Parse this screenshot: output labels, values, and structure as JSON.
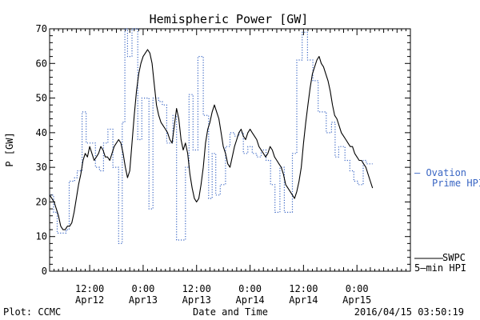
{
  "chart_data": {
    "type": "line",
    "title": "Hemispheric Power [GW]",
    "ylabel": "P [GW]",
    "xlabel": "Date and Time",
    "ylim": [
      0,
      70
    ],
    "y_ticks": [
      0,
      10,
      20,
      30,
      40,
      50,
      60,
      70
    ],
    "x_range_hours": [
      0,
      81
    ],
    "x_tick_labels": [
      {
        "time": "12:00",
        "date": "Apr12",
        "hour": 9
      },
      {
        "time": "0:00",
        "date": "Apr13",
        "hour": 21
      },
      {
        "time": "12:00",
        "date": "Apr13",
        "hour": 33
      },
      {
        "time": "0:00",
        "date": "Apr14",
        "hour": 45
      },
      {
        "time": "12:00",
        "date": "Apr14",
        "hour": 57
      },
      {
        "time": "0:00",
        "date": "Apr15",
        "hour": 69
      }
    ],
    "grid": false,
    "series": [
      {
        "name": "SWPC 5-min HPI",
        "color": "#000000",
        "style": "solid",
        "step": false,
        "points": [
          [
            0,
            22
          ],
          [
            0.5,
            21
          ],
          [
            1,
            20
          ],
          [
            1.5,
            18
          ],
          [
            2,
            16
          ],
          [
            2.5,
            13
          ],
          [
            3,
            12
          ],
          [
            3.5,
            12
          ],
          [
            4,
            13
          ],
          [
            4.5,
            13
          ],
          [
            5,
            14
          ],
          [
            5.5,
            17
          ],
          [
            6,
            21
          ],
          [
            6.5,
            25
          ],
          [
            7,
            28
          ],
          [
            7.5,
            32
          ],
          [
            8,
            34
          ],
          [
            8.5,
            33
          ],
          [
            9,
            36
          ],
          [
            9.5,
            34
          ],
          [
            10,
            32
          ],
          [
            10.5,
            33
          ],
          [
            11,
            34
          ],
          [
            11.5,
            36
          ],
          [
            12,
            35
          ],
          [
            12.5,
            33
          ],
          [
            13,
            33
          ],
          [
            13.5,
            32
          ],
          [
            14,
            34
          ],
          [
            14.5,
            36
          ],
          [
            15,
            37
          ],
          [
            15.5,
            38
          ],
          [
            16,
            37
          ],
          [
            16.5,
            34
          ],
          [
            17,
            30
          ],
          [
            17.5,
            27
          ],
          [
            18,
            29
          ],
          [
            18.5,
            37
          ],
          [
            19,
            45
          ],
          [
            19.5,
            52
          ],
          [
            20,
            57
          ],
          [
            20.5,
            60
          ],
          [
            21,
            62
          ],
          [
            21.5,
            63
          ],
          [
            22,
            64
          ],
          [
            22.5,
            63
          ],
          [
            23,
            60
          ],
          [
            23.5,
            54
          ],
          [
            24,
            48
          ],
          [
            24.5,
            45
          ],
          [
            25,
            43
          ],
          [
            25.5,
            42
          ],
          [
            26,
            41
          ],
          [
            26.5,
            40
          ],
          [
            27,
            38
          ],
          [
            27.5,
            37
          ],
          [
            28,
            42
          ],
          [
            28.5,
            47
          ],
          [
            29,
            44
          ],
          [
            29.5,
            38
          ],
          [
            30,
            35
          ],
          [
            30.5,
            37
          ],
          [
            31,
            34
          ],
          [
            31.5,
            28
          ],
          [
            32,
            24
          ],
          [
            32.5,
            21
          ],
          [
            33,
            20
          ],
          [
            33.5,
            21
          ],
          [
            34,
            25
          ],
          [
            34.5,
            30
          ],
          [
            35,
            37
          ],
          [
            35.5,
            41
          ],
          [
            36,
            43
          ],
          [
            36.5,
            46
          ],
          [
            37,
            48
          ],
          [
            37.5,
            46
          ],
          [
            38,
            44
          ],
          [
            38.5,
            40
          ],
          [
            39,
            36
          ],
          [
            39.5,
            34
          ],
          [
            40,
            31
          ],
          [
            40.5,
            30
          ],
          [
            41,
            33
          ],
          [
            41.5,
            36
          ],
          [
            42,
            38
          ],
          [
            42.5,
            40
          ],
          [
            43,
            41
          ],
          [
            43.5,
            39
          ],
          [
            44,
            38
          ],
          [
            44.5,
            40
          ],
          [
            45,
            41
          ],
          [
            45.5,
            40
          ],
          [
            46,
            39
          ],
          [
            46.5,
            38
          ],
          [
            47,
            36
          ],
          [
            47.5,
            35
          ],
          [
            48,
            34
          ],
          [
            48.5,
            33
          ],
          [
            49,
            34
          ],
          [
            49.5,
            36
          ],
          [
            50,
            35
          ],
          [
            50.5,
            33
          ],
          [
            51,
            32
          ],
          [
            51.5,
            31
          ],
          [
            52,
            30
          ],
          [
            52.5,
            28
          ],
          [
            53,
            25
          ],
          [
            53.5,
            24
          ],
          [
            54,
            23
          ],
          [
            54.5,
            22
          ],
          [
            55,
            21
          ],
          [
            55.5,
            23
          ],
          [
            56,
            26
          ],
          [
            56.5,
            30
          ],
          [
            57,
            37
          ],
          [
            57.5,
            43
          ],
          [
            58,
            48
          ],
          [
            58.5,
            53
          ],
          [
            59,
            57
          ],
          [
            59.5,
            59
          ],
          [
            60,
            61
          ],
          [
            60.5,
            62
          ],
          [
            61,
            60
          ],
          [
            61.5,
            59
          ],
          [
            62,
            57
          ],
          [
            62.5,
            55
          ],
          [
            63,
            52
          ],
          [
            63.5,
            48
          ],
          [
            64,
            45
          ],
          [
            64.5,
            44
          ],
          [
            65,
            42
          ],
          [
            65.5,
            40
          ],
          [
            66,
            39
          ],
          [
            66.5,
            38
          ],
          [
            67,
            37
          ],
          [
            67.5,
            36
          ],
          [
            68,
            36
          ],
          [
            68.5,
            34
          ],
          [
            69,
            33
          ],
          [
            69.5,
            32
          ],
          [
            70,
            32
          ],
          [
            70.5,
            31
          ],
          [
            71,
            30
          ],
          [
            71.5,
            28
          ],
          [
            72,
            26
          ],
          [
            72.5,
            24
          ]
        ]
      },
      {
        "name": "Ovation Prime HPI",
        "color": "#3a66c4",
        "style": "dotted",
        "step": true,
        "points": [
          [
            0,
            22
          ],
          [
            0.9,
            17
          ],
          [
            1.7,
            11
          ],
          [
            3.7,
            12
          ],
          [
            4.4,
            26
          ],
          [
            5.6,
            27
          ],
          [
            6.2,
            29
          ],
          [
            7.3,
            46
          ],
          [
            8.2,
            37
          ],
          [
            9.1,
            37
          ],
          [
            10.3,
            30
          ],
          [
            11.2,
            29
          ],
          [
            12.1,
            37
          ],
          [
            13.1,
            41
          ],
          [
            14.2,
            30
          ],
          [
            15.5,
            8
          ],
          [
            16.3,
            43
          ],
          [
            16.9,
            70
          ],
          [
            17.5,
            62
          ],
          [
            18.5,
            70
          ],
          [
            19.8,
            38
          ],
          [
            20.7,
            50
          ],
          [
            22.3,
            18
          ],
          [
            23.2,
            50
          ],
          [
            24.5,
            49
          ],
          [
            25.3,
            48
          ],
          [
            26.3,
            37
          ],
          [
            27.7,
            45
          ],
          [
            28.5,
            9
          ],
          [
            30.5,
            30
          ],
          [
            31.3,
            51
          ],
          [
            32.2,
            35
          ],
          [
            33.3,
            62
          ],
          [
            34.5,
            45
          ],
          [
            35.7,
            21
          ],
          [
            36.5,
            34
          ],
          [
            37.3,
            22
          ],
          [
            38.3,
            25
          ],
          [
            39.5,
            36
          ],
          [
            40.5,
            40
          ],
          [
            41.5,
            39
          ],
          [
            42.5,
            40
          ],
          [
            43.5,
            34
          ],
          [
            44.5,
            36
          ],
          [
            45.5,
            34
          ],
          [
            46.5,
            33
          ],
          [
            47.5,
            35
          ],
          [
            48.6,
            32
          ],
          [
            49.6,
            25
          ],
          [
            50.6,
            17
          ],
          [
            51.7,
            30
          ],
          [
            52.7,
            17
          ],
          [
            54.5,
            34
          ],
          [
            55.5,
            61
          ],
          [
            56.7,
            69
          ],
          [
            57.9,
            61
          ],
          [
            59.1,
            55
          ],
          [
            60.3,
            46
          ],
          [
            61.1,
            46
          ],
          [
            62.1,
            40
          ],
          [
            63.3,
            43
          ],
          [
            64.1,
            33
          ],
          [
            64.9,
            36
          ],
          [
            66.3,
            32
          ],
          [
            67.4,
            29
          ],
          [
            68.3,
            26
          ],
          [
            69.2,
            25
          ],
          [
            70.4,
            32
          ],
          [
            71.1,
            31
          ],
          [
            72.5,
            31
          ]
        ]
      }
    ],
    "legend": [
      {
        "label_line1": "— Ovation",
        "label_line2": "Prime HPI",
        "color": "#3a66c4",
        "hour": 73.2
      },
      {
        "label_line1": "SWPC",
        "label_line2": "5–min HPI",
        "color": "#000000",
        "hour": 73.2
      }
    ]
  },
  "footer": {
    "plot_credit": "Plot: CCMC",
    "timestamp": "2016/04/15 03:50:19"
  }
}
